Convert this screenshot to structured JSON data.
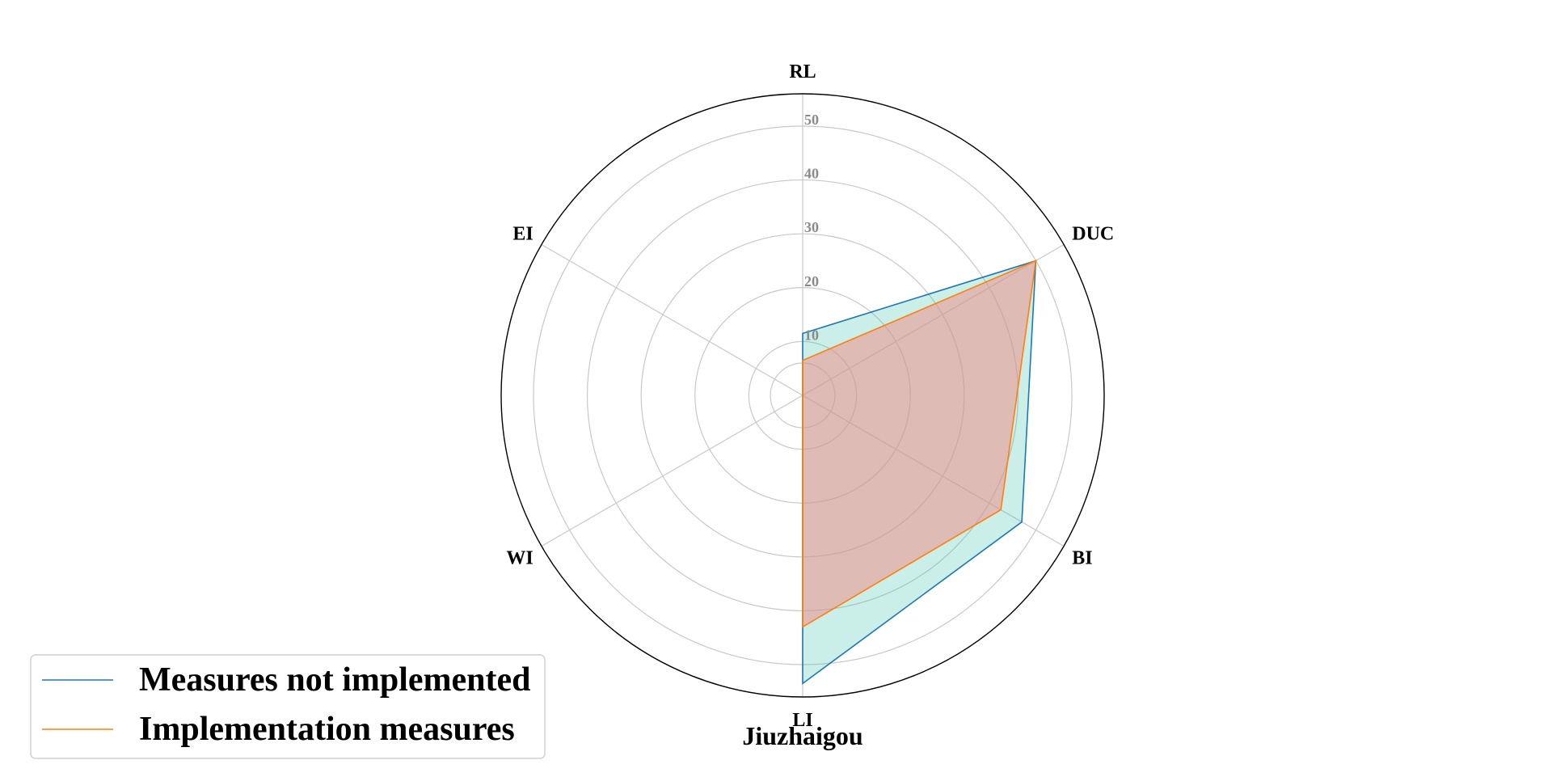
{
  "chart_data": {
    "type": "radar",
    "caption": "Jiuzhaigou",
    "axes": [
      "RL",
      "DUC",
      "BI",
      "LI",
      "WI",
      "EI"
    ],
    "rlim": [
      0,
      56
    ],
    "rticks": [
      10,
      20,
      30,
      40,
      50
    ],
    "rtick_labels": [
      "10",
      "20",
      "30",
      "40",
      "50"
    ],
    "grid": true,
    "legend_position": "lower-left",
    "series": [
      {
        "name": "Measures not implemented",
        "values": [
          11.5,
          50.0,
          47.0,
          53.5,
          0,
          0
        ],
        "line_color": "#1f77b4",
        "fill_color": "#3cc4ae"
      },
      {
        "name": "Implementation measures",
        "values": [
          6.5,
          50.0,
          42.5,
          43.0,
          0,
          0
        ],
        "line_color": "#ff7f0e",
        "fill_color": "#ef8f8a"
      }
    ]
  }
}
